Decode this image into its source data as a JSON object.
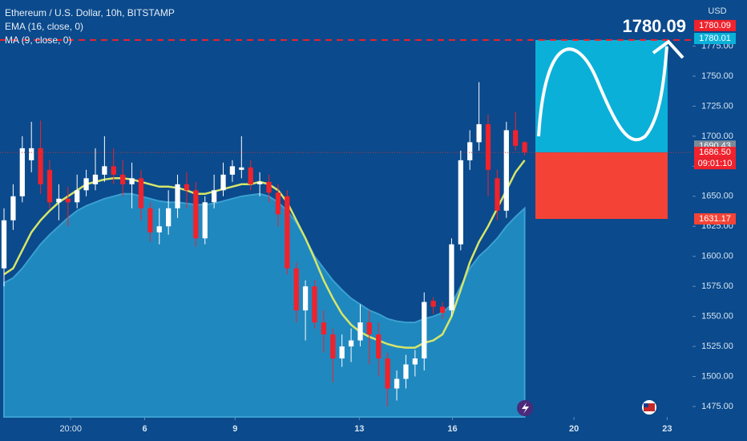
{
  "chart_data": {
    "type": "candlestick",
    "title": "Ethereum / U.S. Dollar, 10h, BITSTAMP",
    "y_unit": "USD",
    "open": [
      1590,
      1630,
      1650,
      1680,
      1690,
      1672,
      1645,
      1648,
      1645,
      1655,
      1660,
      1668,
      1675,
      1668,
      1660,
      1665,
      1640,
      1620,
      1625,
      1640,
      1660,
      1655,
      1615,
      1645,
      1655,
      1668,
      1672,
      1674,
      1660,
      1662,
      1653,
      1650,
      1590,
      1555,
      1575,
      1545,
      1535,
      1515,
      1525,
      1530,
      1545,
      1535,
      1515,
      1490,
      1498,
      1510,
      1515,
      1563,
      1558,
      1555,
      1610,
      1680,
      1695,
      1710,
      1665,
      1638,
      1705,
      1695
    ],
    "high": [
      1640,
      1660,
      1700,
      1712,
      1713,
      1680,
      1660,
      1658,
      1668,
      1672,
      1690,
      1700,
      1690,
      1680,
      1678,
      1672,
      1645,
      1640,
      1655,
      1668,
      1670,
      1662,
      1650,
      1668,
      1678,
      1680,
      1700,
      1680,
      1670,
      1668,
      1660,
      1655,
      1595,
      1580,
      1580,
      1555,
      1540,
      1535,
      1540,
      1560,
      1555,
      1545,
      1520,
      1505,
      1518,
      1522,
      1570,
      1566,
      1562,
      1615,
      1688,
      1705,
      1745,
      1718,
      1672,
      1712,
      1720,
      1696
    ],
    "low": [
      1575,
      1622,
      1645,
      1670,
      1652,
      1640,
      1630,
      1625,
      1640,
      1650,
      1655,
      1662,
      1660,
      1650,
      1640,
      1630,
      1612,
      1610,
      1618,
      1632,
      1640,
      1608,
      1610,
      1640,
      1650,
      1662,
      1665,
      1655,
      1650,
      1645,
      1625,
      1585,
      1545,
      1530,
      1540,
      1520,
      1495,
      1508,
      1512,
      1525,
      1510,
      1500,
      1475,
      1480,
      1490,
      1500,
      1505,
      1552,
      1548,
      1550,
      1605,
      1672,
      1688,
      1650,
      1630,
      1632,
      1688,
      1684
    ],
    "close": [
      1630,
      1650,
      1690,
      1690,
      1660,
      1645,
      1648,
      1645,
      1655,
      1665,
      1668,
      1675,
      1668,
      1660,
      1665,
      1640,
      1620,
      1625,
      1640,
      1660,
      1655,
      1615,
      1645,
      1655,
      1668,
      1675,
      1674,
      1660,
      1662,
      1653,
      1635,
      1590,
      1555,
      1575,
      1545,
      1535,
      1515,
      1525,
      1530,
      1545,
      1535,
      1515,
      1490,
      1498,
      1510,
      1515,
      1562,
      1558,
      1553,
      1610,
      1680,
      1695,
      1710,
      1672,
      1638,
      1705,
      1692,
      1686.5
    ],
    "up_color": "#ffffff",
    "down_color": "#f0222c",
    "series": [
      {
        "name": "EMA (16, close, 0)",
        "color": "#1f88bf",
        "style": "area",
        "values": [
          1578,
          1582,
          1590,
          1600,
          1610,
          1618,
          1625,
          1632,
          1638,
          1642,
          1645,
          1648,
          1650,
          1652,
          1652,
          1650,
          1648,
          1646,
          1645,
          1645,
          1644,
          1643,
          1643,
          1644,
          1646,
          1648,
          1650,
          1651,
          1652,
          1650,
          1645,
          1638,
          1628,
          1615,
          1600,
          1590,
          1580,
          1572,
          1565,
          1560,
          1555,
          1552,
          1548,
          1546,
          1545,
          1545,
          1548,
          1550,
          1553,
          1560,
          1575,
          1590,
          1600,
          1607,
          1615,
          1625,
          1633,
          1640
        ]
      },
      {
        "name": "MA (9, close, 0)",
        "color": "#d6e56a",
        "style": "line",
        "values": [
          1585,
          1590,
          1605,
          1620,
          1630,
          1638,
          1645,
          1650,
          1655,
          1660,
          1662,
          1664,
          1665,
          1665,
          1664,
          1662,
          1660,
          1658,
          1658,
          1657,
          1655,
          1652,
          1652,
          1654,
          1656,
          1658,
          1660,
          1660,
          1662,
          1660,
          1655,
          1645,
          1630,
          1615,
          1598,
          1580,
          1565,
          1552,
          1543,
          1537,
          1533,
          1530,
          1527,
          1525,
          1524,
          1524,
          1528,
          1530,
          1535,
          1550,
          1572,
          1595,
          1612,
          1625,
          1640,
          1655,
          1670,
          1680
        ]
      }
    ],
    "xlim": [
      -0.44,
      75.2
    ],
    "xticks": [
      {
        "value": 7.3,
        "label": "20:00"
      },
      {
        "value": 15.4,
        "label": "6"
      },
      {
        "value": 25.3,
        "label": "9"
      },
      {
        "value": 38.9,
        "label": "13"
      },
      {
        "value": 49.1,
        "label": "16"
      },
      {
        "value": 62.4,
        "label": "20"
      },
      {
        "value": 72.6,
        "label": "23"
      }
    ],
    "ylim": [
      1466.3,
      1813.4
    ],
    "yticks": [
      {
        "value": 1475,
        "label": "1475.00"
      },
      {
        "value": 1500,
        "label": "1500.00"
      },
      {
        "value": 1525,
        "label": "1525.00"
      },
      {
        "value": 1550,
        "label": "1550.00"
      },
      {
        "value": 1575,
        "label": "1575.00"
      },
      {
        "value": 1600,
        "label": "1600.00"
      },
      {
        "value": 1625,
        "label": "1625.00"
      },
      {
        "value": 1650,
        "label": "1650.00"
      },
      {
        "value": 1675,
        "label": "1675.00"
      },
      {
        "value": 1700,
        "label": "1700.00"
      },
      {
        "value": 1725,
        "label": "1725.00"
      },
      {
        "value": 1750,
        "label": "1750.00"
      },
      {
        "value": 1775,
        "label": "1775.00"
      }
    ],
    "target": 1780.09,
    "target_color": "#f0222c",
    "ma_level": 1780.01,
    "high_level": 1690.43,
    "last_price": {
      "value": 1686.5,
      "label": "1686.50"
    },
    "countdown": "09:01:10",
    "stop": 1631.17,
    "profit_color": "#0bb0d8",
    "loss_color": "#f44336"
  }
}
